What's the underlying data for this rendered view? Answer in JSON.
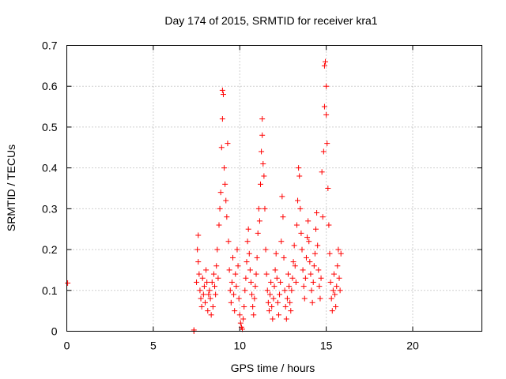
{
  "chart_data": {
    "type": "scatter",
    "title": "Day 174 of 2015, SRMTID for receiver kra1",
    "xlabel": "GPS time / hours",
    "ylabel": "SRMTID / TECUs",
    "xlim": [
      0,
      24
    ],
    "ylim": [
      0,
      0.7
    ],
    "xticks": [
      0,
      5,
      10,
      15,
      20
    ],
    "yticks": [
      0,
      0.1,
      0.2,
      0.3,
      0.4,
      0.5,
      0.6,
      0.7
    ],
    "ytick_labels": [
      "0",
      "0.1",
      "0.2",
      "0.3",
      "0.4",
      "0.5",
      "0.6",
      "0.7"
    ],
    "xtick_labels": [
      "0",
      "5",
      "10",
      "15",
      "20"
    ],
    "grid": true,
    "marker": "+",
    "color": "#ff0000",
    "series": [
      {
        "name": "SRMTID",
        "points": [
          [
            0.05,
            0.118
          ],
          [
            7.35,
            0.0
          ],
          [
            7.35,
            0.003
          ],
          [
            7.5,
            0.12
          ],
          [
            7.55,
            0.2
          ],
          [
            7.6,
            0.235
          ],
          [
            7.6,
            0.17
          ],
          [
            7.65,
            0.14
          ],
          [
            7.7,
            0.1
          ],
          [
            7.75,
            0.08
          ],
          [
            7.8,
            0.06
          ],
          [
            7.85,
            0.13
          ],
          [
            7.9,
            0.09
          ],
          [
            7.95,
            0.11
          ],
          [
            8.0,
            0.07
          ],
          [
            8.05,
            0.15
          ],
          [
            8.1,
            0.12
          ],
          [
            8.15,
            0.05
          ],
          [
            8.2,
            0.09
          ],
          [
            8.25,
            0.1
          ],
          [
            8.3,
            0.08
          ],
          [
            8.35,
            0.04
          ],
          [
            8.4,
            0.12
          ],
          [
            8.45,
            0.06
          ],
          [
            8.5,
            0.14
          ],
          [
            8.55,
            0.11
          ],
          [
            8.6,
            0.09
          ],
          [
            8.65,
            0.16
          ],
          [
            8.7,
            0.2
          ],
          [
            8.75,
            0.13
          ],
          [
            8.8,
            0.26
          ],
          [
            8.85,
            0.3
          ],
          [
            8.9,
            0.34
          ],
          [
            8.95,
            0.45
          ],
          [
            9.0,
            0.52
          ],
          [
            9.0,
            0.59
          ],
          [
            9.05,
            0.58
          ],
          [
            9.1,
            0.4
          ],
          [
            9.15,
            0.36
          ],
          [
            9.2,
            0.32
          ],
          [
            9.25,
            0.28
          ],
          [
            9.3,
            0.46
          ],
          [
            9.35,
            0.22
          ],
          [
            9.4,
            0.15
          ],
          [
            9.45,
            0.1
          ],
          [
            9.5,
            0.07
          ],
          [
            9.55,
            0.12
          ],
          [
            9.6,
            0.18
          ],
          [
            9.65,
            0.09
          ],
          [
            9.7,
            0.05
          ],
          [
            9.75,
            0.14
          ],
          [
            9.8,
            0.11
          ],
          [
            9.85,
            0.2
          ],
          [
            9.9,
            0.16
          ],
          [
            9.95,
            0.08
          ],
          [
            10.0,
            0.04
          ],
          [
            10.05,
            0.02
          ],
          [
            10.1,
            0.01
          ],
          [
            10.15,
            0.005
          ],
          [
            10.2,
            0.03
          ],
          [
            10.25,
            0.06
          ],
          [
            10.3,
            0.1
          ],
          [
            10.35,
            0.13
          ],
          [
            10.4,
            0.17
          ],
          [
            10.45,
            0.22
          ],
          [
            10.5,
            0.25
          ],
          [
            10.55,
            0.19
          ],
          [
            10.6,
            0.15
          ],
          [
            10.65,
            0.12
          ],
          [
            10.7,
            0.09
          ],
          [
            10.75,
            0.06
          ],
          [
            10.8,
            0.04
          ],
          [
            10.85,
            0.08
          ],
          [
            10.9,
            0.11
          ],
          [
            10.95,
            0.14
          ],
          [
            11.0,
            0.18
          ],
          [
            11.05,
            0.24
          ],
          [
            11.1,
            0.3
          ],
          [
            11.15,
            0.27
          ],
          [
            11.2,
            0.36
          ],
          [
            11.25,
            0.44
          ],
          [
            11.3,
            0.48
          ],
          [
            11.3,
            0.52
          ],
          [
            11.35,
            0.41
          ],
          [
            11.4,
            0.38
          ],
          [
            11.45,
            0.3
          ],
          [
            11.5,
            0.2
          ],
          [
            11.55,
            0.14
          ],
          [
            11.6,
            0.1
          ],
          [
            11.65,
            0.07
          ],
          [
            11.7,
            0.05
          ],
          [
            11.75,
            0.09
          ],
          [
            11.8,
            0.12
          ],
          [
            11.85,
            0.06
          ],
          [
            11.9,
            0.03
          ],
          [
            11.95,
            0.08
          ],
          [
            12.0,
            0.11
          ],
          [
            12.05,
            0.15
          ],
          [
            12.1,
            0.19
          ],
          [
            12.15,
            0.13
          ],
          [
            12.2,
            0.07
          ],
          [
            12.25,
            0.04
          ],
          [
            12.3,
            0.09
          ],
          [
            12.35,
            0.12
          ],
          [
            12.4,
            0.22
          ],
          [
            12.45,
            0.33
          ],
          [
            12.5,
            0.28
          ],
          [
            12.55,
            0.18
          ],
          [
            12.6,
            0.1
          ],
          [
            12.65,
            0.06
          ],
          [
            12.7,
            0.03
          ],
          [
            12.75,
            0.08
          ],
          [
            12.8,
            0.14
          ],
          [
            12.85,
            0.11
          ],
          [
            12.9,
            0.07
          ],
          [
            12.95,
            0.05
          ],
          [
            13.0,
            0.1
          ],
          [
            13.05,
            0.13
          ],
          [
            13.1,
            0.17
          ],
          [
            13.15,
            0.21
          ],
          [
            13.2,
            0.16
          ],
          [
            13.25,
            0.12
          ],
          [
            13.3,
            0.26
          ],
          [
            13.35,
            0.32
          ],
          [
            13.4,
            0.4
          ],
          [
            13.45,
            0.38
          ],
          [
            13.5,
            0.3
          ],
          [
            13.55,
            0.24
          ],
          [
            13.6,
            0.2
          ],
          [
            13.65,
            0.15
          ],
          [
            13.7,
            0.11
          ],
          [
            13.75,
            0.08
          ],
          [
            13.8,
            0.13
          ],
          [
            13.85,
            0.18
          ],
          [
            13.9,
            0.23
          ],
          [
            13.95,
            0.27
          ],
          [
            14.0,
            0.22
          ],
          [
            14.05,
            0.17
          ],
          [
            14.1,
            0.14
          ],
          [
            14.15,
            0.1
          ],
          [
            14.2,
            0.07
          ],
          [
            14.25,
            0.12
          ],
          [
            14.3,
            0.16
          ],
          [
            14.35,
            0.19
          ],
          [
            14.4,
            0.25
          ],
          [
            14.45,
            0.29
          ],
          [
            14.5,
            0.21
          ],
          [
            14.55,
            0.15
          ],
          [
            14.6,
            0.11
          ],
          [
            14.65,
            0.08
          ],
          [
            14.7,
            0.13
          ],
          [
            14.75,
            0.39
          ],
          [
            14.8,
            0.28
          ],
          [
            14.85,
            0.44
          ],
          [
            14.9,
            0.55
          ],
          [
            14.9,
            0.65
          ],
          [
            14.95,
            0.66
          ],
          [
            15.0,
            0.6
          ],
          [
            15.0,
            0.53
          ],
          [
            15.05,
            0.46
          ],
          [
            15.1,
            0.35
          ],
          [
            15.15,
            0.26
          ],
          [
            15.2,
            0.19
          ],
          [
            15.25,
            0.12
          ],
          [
            15.3,
            0.08
          ],
          [
            15.35,
            0.05
          ],
          [
            15.4,
            0.1
          ],
          [
            15.45,
            0.14
          ],
          [
            15.5,
            0.09
          ],
          [
            15.55,
            0.06
          ],
          [
            15.6,
            0.11
          ],
          [
            15.65,
            0.16
          ],
          [
            15.7,
            0.2
          ],
          [
            15.75,
            0.13
          ],
          [
            15.8,
            0.1
          ],
          [
            15.85,
            0.19
          ]
        ]
      }
    ]
  }
}
